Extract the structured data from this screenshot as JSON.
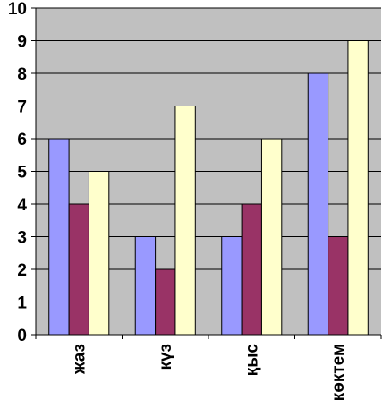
{
  "chart_data": {
    "type": "bar",
    "categories": [
      "жаз",
      "күз",
      "қыс",
      "көктем"
    ],
    "series": [
      {
        "values": [
          6,
          3,
          3,
          8
        ],
        "color": "#9999ff"
      },
      {
        "values": [
          4,
          2,
          4,
          3
        ],
        "color": "#993366"
      },
      {
        "values": [
          5,
          7,
          6,
          9
        ],
        "color": "#ffffcc"
      }
    ],
    "ylim": [
      0,
      10
    ],
    "yticks": [
      "0",
      "1",
      "2",
      "3",
      "4",
      "5",
      "6",
      "7",
      "8",
      "9",
      "10"
    ],
    "grid": true,
    "plot_background": "#c0c0c0",
    "title": "",
    "xlabel": "",
    "ylabel": ""
  }
}
